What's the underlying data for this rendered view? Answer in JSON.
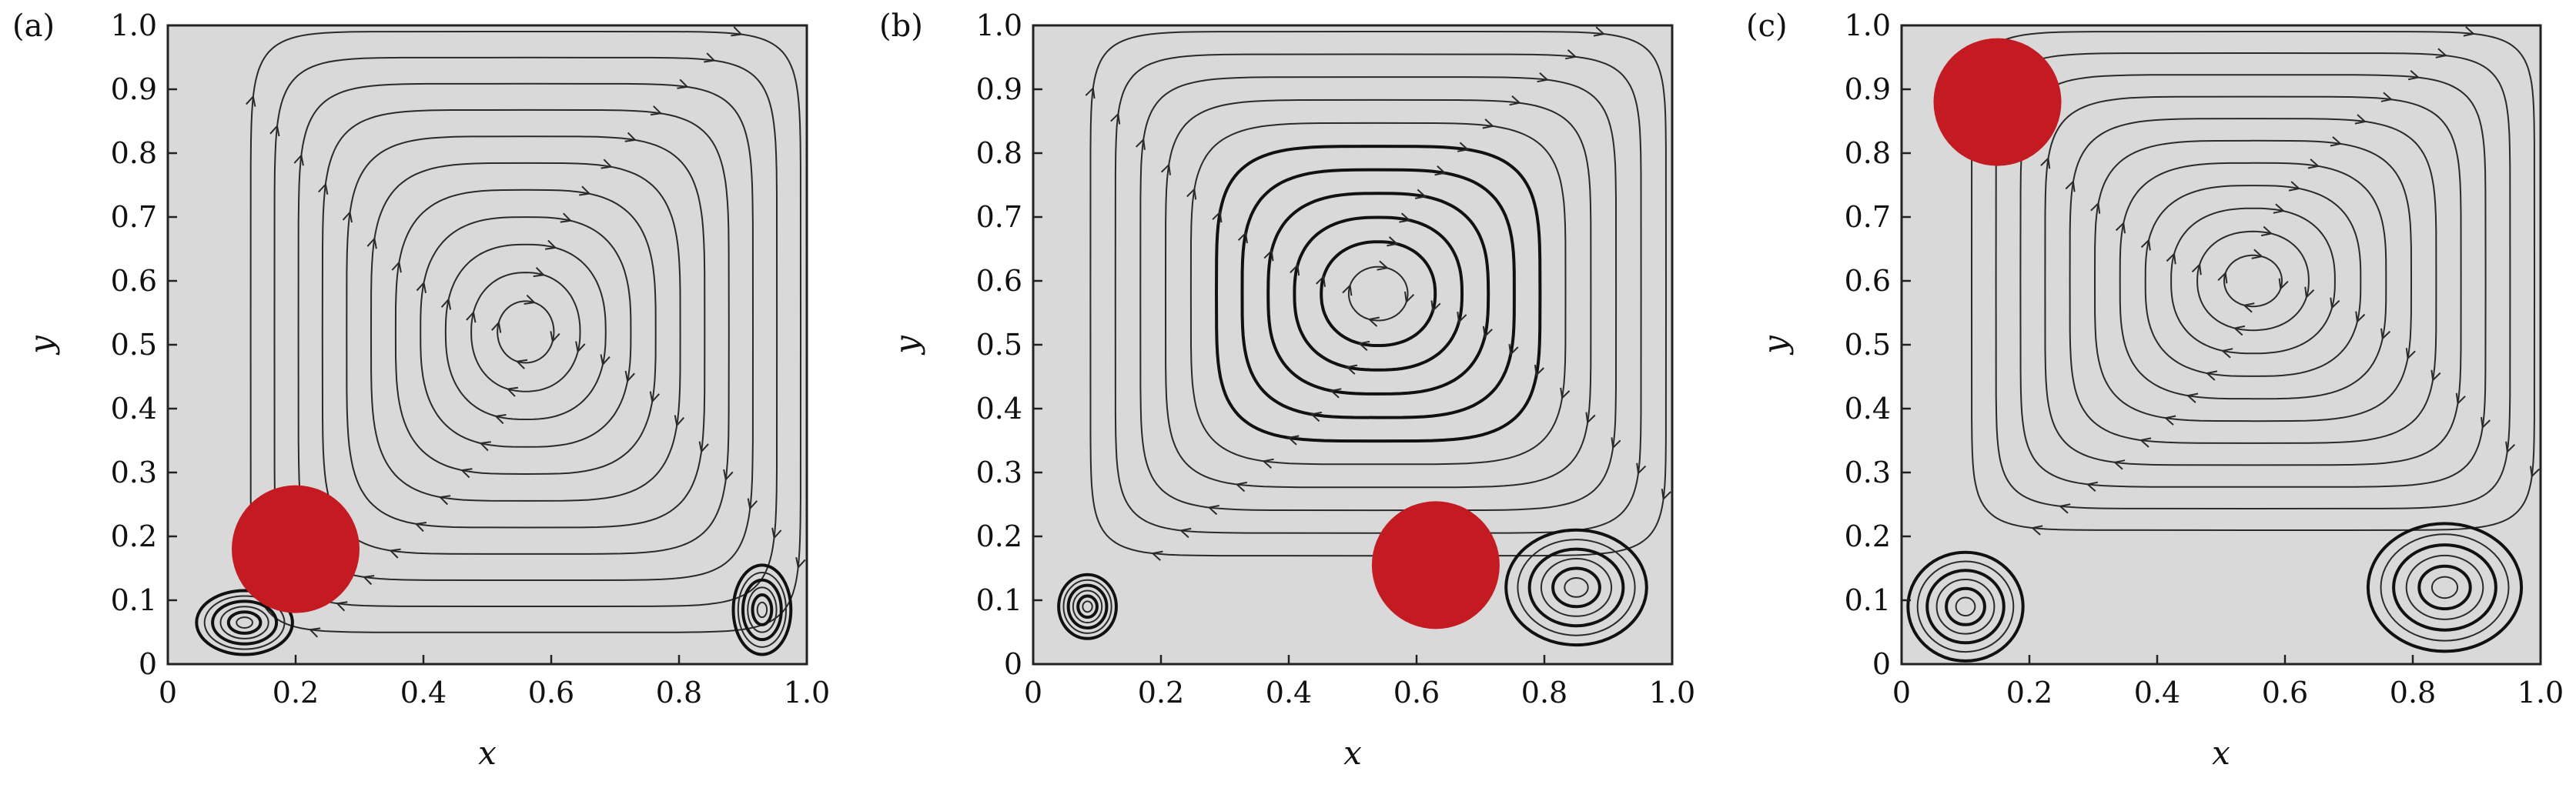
{
  "chart_data": [
    {
      "type": "streamplot",
      "panel_label": "(a)",
      "xlabel": "x",
      "ylabel": "y",
      "xlim": [
        0,
        1
      ],
      "ylim": [
        0,
        1
      ],
      "xticks": [
        "0",
        "0.2",
        "0.4",
        "0.6",
        "0.8",
        "1.0"
      ],
      "yticks": [
        "0",
        "0.1",
        "0.2",
        "0.3",
        "0.4",
        "0.5",
        "0.6",
        "0.7",
        "0.8",
        "0.9",
        "1.0"
      ],
      "background_color": "#d9d9d9",
      "particle": {
        "x": 0.2,
        "y": 0.18,
        "radius": 0.1,
        "color": "#c41a22"
      },
      "primary_vortex": {
        "x": 0.56,
        "y": 0.52
      },
      "secondary_vortices": [
        {
          "x": 0.12,
          "y": 0.065,
          "rx": 0.075,
          "ry": 0.05
        },
        {
          "x": 0.93,
          "y": 0.085,
          "rx": 0.045,
          "ry": 0.07
        }
      ]
    },
    {
      "type": "streamplot",
      "panel_label": "(b)",
      "xlabel": "x",
      "ylabel": "y",
      "xlim": [
        0,
        1
      ],
      "ylim": [
        0,
        1
      ],
      "xticks": [
        "0",
        "0.2",
        "0.4",
        "0.6",
        "0.8",
        "1.0"
      ],
      "yticks": [
        "0",
        "0.1",
        "0.2",
        "0.3",
        "0.4",
        "0.5",
        "0.6",
        "0.7",
        "0.8",
        "0.9",
        "1.0"
      ],
      "background_color": "#d9d9d9",
      "particle": {
        "x": 0.63,
        "y": 0.155,
        "radius": 0.1,
        "color": "#c41a22"
      },
      "primary_vortex": {
        "x": 0.54,
        "y": 0.58
      },
      "secondary_vortices": [
        {
          "x": 0.085,
          "y": 0.09,
          "rx": 0.045,
          "ry": 0.05
        },
        {
          "x": 0.85,
          "y": 0.12,
          "rx": 0.11,
          "ry": 0.09
        }
      ]
    },
    {
      "type": "streamplot",
      "panel_label": "(c)",
      "xlabel": "x",
      "ylabel": "y",
      "xlim": [
        0,
        1
      ],
      "ylim": [
        0,
        1
      ],
      "xticks": [
        "0",
        "0.2",
        "0.4",
        "0.6",
        "0.8",
        "1.0"
      ],
      "yticks": [
        "0",
        "0.1",
        "0.2",
        "0.3",
        "0.4",
        "0.5",
        "0.6",
        "0.7",
        "0.8",
        "0.9",
        "1.0"
      ],
      "background_color": "#d9d9d9",
      "particle": {
        "x": 0.15,
        "y": 0.88,
        "radius": 0.1,
        "color": "#c41a22"
      },
      "primary_vortex": {
        "x": 0.55,
        "y": 0.6
      },
      "secondary_vortices": [
        {
          "x": 0.1,
          "y": 0.09,
          "rx": 0.09,
          "ry": 0.085
        },
        {
          "x": 0.85,
          "y": 0.12,
          "rx": 0.12,
          "ry": 0.1
        }
      ]
    }
  ]
}
